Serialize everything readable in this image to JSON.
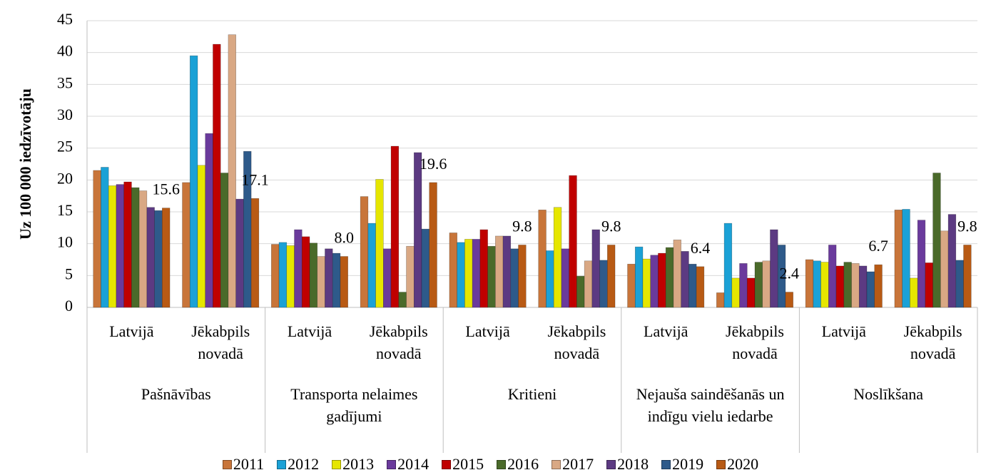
{
  "chart_data": {
    "type": "bar",
    "ylabel": "Uz 100 000 iedzīvotāju",
    "groups": [
      "Pašnāvības",
      "Transporta nelaimes gadījumi",
      "Kritieni",
      "Nejauša saindēšanās un indīgu vielu iedarbe",
      "Noslīkšana"
    ],
    "categories": [
      "Latvijā",
      "Jēkabpils novadā",
      "Latvijā",
      "Jēkabpils novadā",
      "Latvijā",
      "Jēkabpils novadā",
      "Latvijā",
      "Jēkabpils novadā",
      "Latvijā",
      "Jēkabpils novadā"
    ],
    "series": [
      {
        "name": "2011",
        "color": "#c8753a",
        "values": [
          21.5,
          19.6,
          9.9,
          17.4,
          11.7,
          15.3,
          6.8,
          2.3,
          7.5,
          15.3
        ]
      },
      {
        "name": "2012",
        "color": "#1ba1d6",
        "values": [
          22.0,
          39.5,
          10.2,
          13.2,
          10.2,
          8.9,
          9.5,
          13.2,
          7.3,
          15.4
        ]
      },
      {
        "name": "2013",
        "color": "#e6e600",
        "values": [
          19.1,
          22.3,
          9.7,
          20.1,
          10.7,
          15.7,
          7.6,
          4.6,
          7.1,
          4.6
        ]
      },
      {
        "name": "2014",
        "color": "#6a3a9c",
        "values": [
          19.3,
          27.3,
          12.2,
          9.2,
          10.7,
          9.2,
          8.2,
          6.9,
          9.8,
          13.7
        ]
      },
      {
        "name": "2015",
        "color": "#c00000",
        "values": [
          19.7,
          41.3,
          11.1,
          25.3,
          12.2,
          20.7,
          8.5,
          4.6,
          6.5,
          7.0
        ]
      },
      {
        "name": "2016",
        "color": "#4a6a2a",
        "values": [
          18.8,
          21.1,
          10.1,
          2.4,
          9.6,
          4.9,
          9.4,
          7.1,
          7.1,
          21.1
        ]
      },
      {
        "name": "2017",
        "color": "#d9a884",
        "values": [
          18.3,
          42.8,
          8.0,
          9.6,
          11.2,
          7.3,
          10.6,
          7.3,
          6.9,
          12.0
        ]
      },
      {
        "name": "2018",
        "color": "#5c3a82",
        "values": [
          15.7,
          17.0,
          9.2,
          24.3,
          11.2,
          12.2,
          8.8,
          12.2,
          6.5,
          14.6
        ]
      },
      {
        "name": "2019",
        "color": "#2e5a8a",
        "values": [
          15.2,
          24.5,
          8.5,
          12.3,
          9.2,
          7.4,
          6.8,
          9.8,
          5.6,
          7.4
        ]
      },
      {
        "name": "2020",
        "color": "#b85a14",
        "values": [
          15.6,
          17.1,
          8.0,
          19.6,
          9.8,
          9.8,
          6.4,
          2.4,
          6.7,
          9.8
        ],
        "value_labels": [
          "15.6",
          "17.1",
          "8.0",
          "19.6",
          "9.8",
          "9.8",
          "6.4",
          "2.4",
          "6.7",
          "9.8"
        ]
      }
    ],
    "ylim": [
      0,
      45
    ],
    "yticks": [
      0,
      5,
      10,
      15,
      20,
      25,
      30,
      35,
      40,
      45
    ],
    "grid": true,
    "legend": "bottom"
  }
}
